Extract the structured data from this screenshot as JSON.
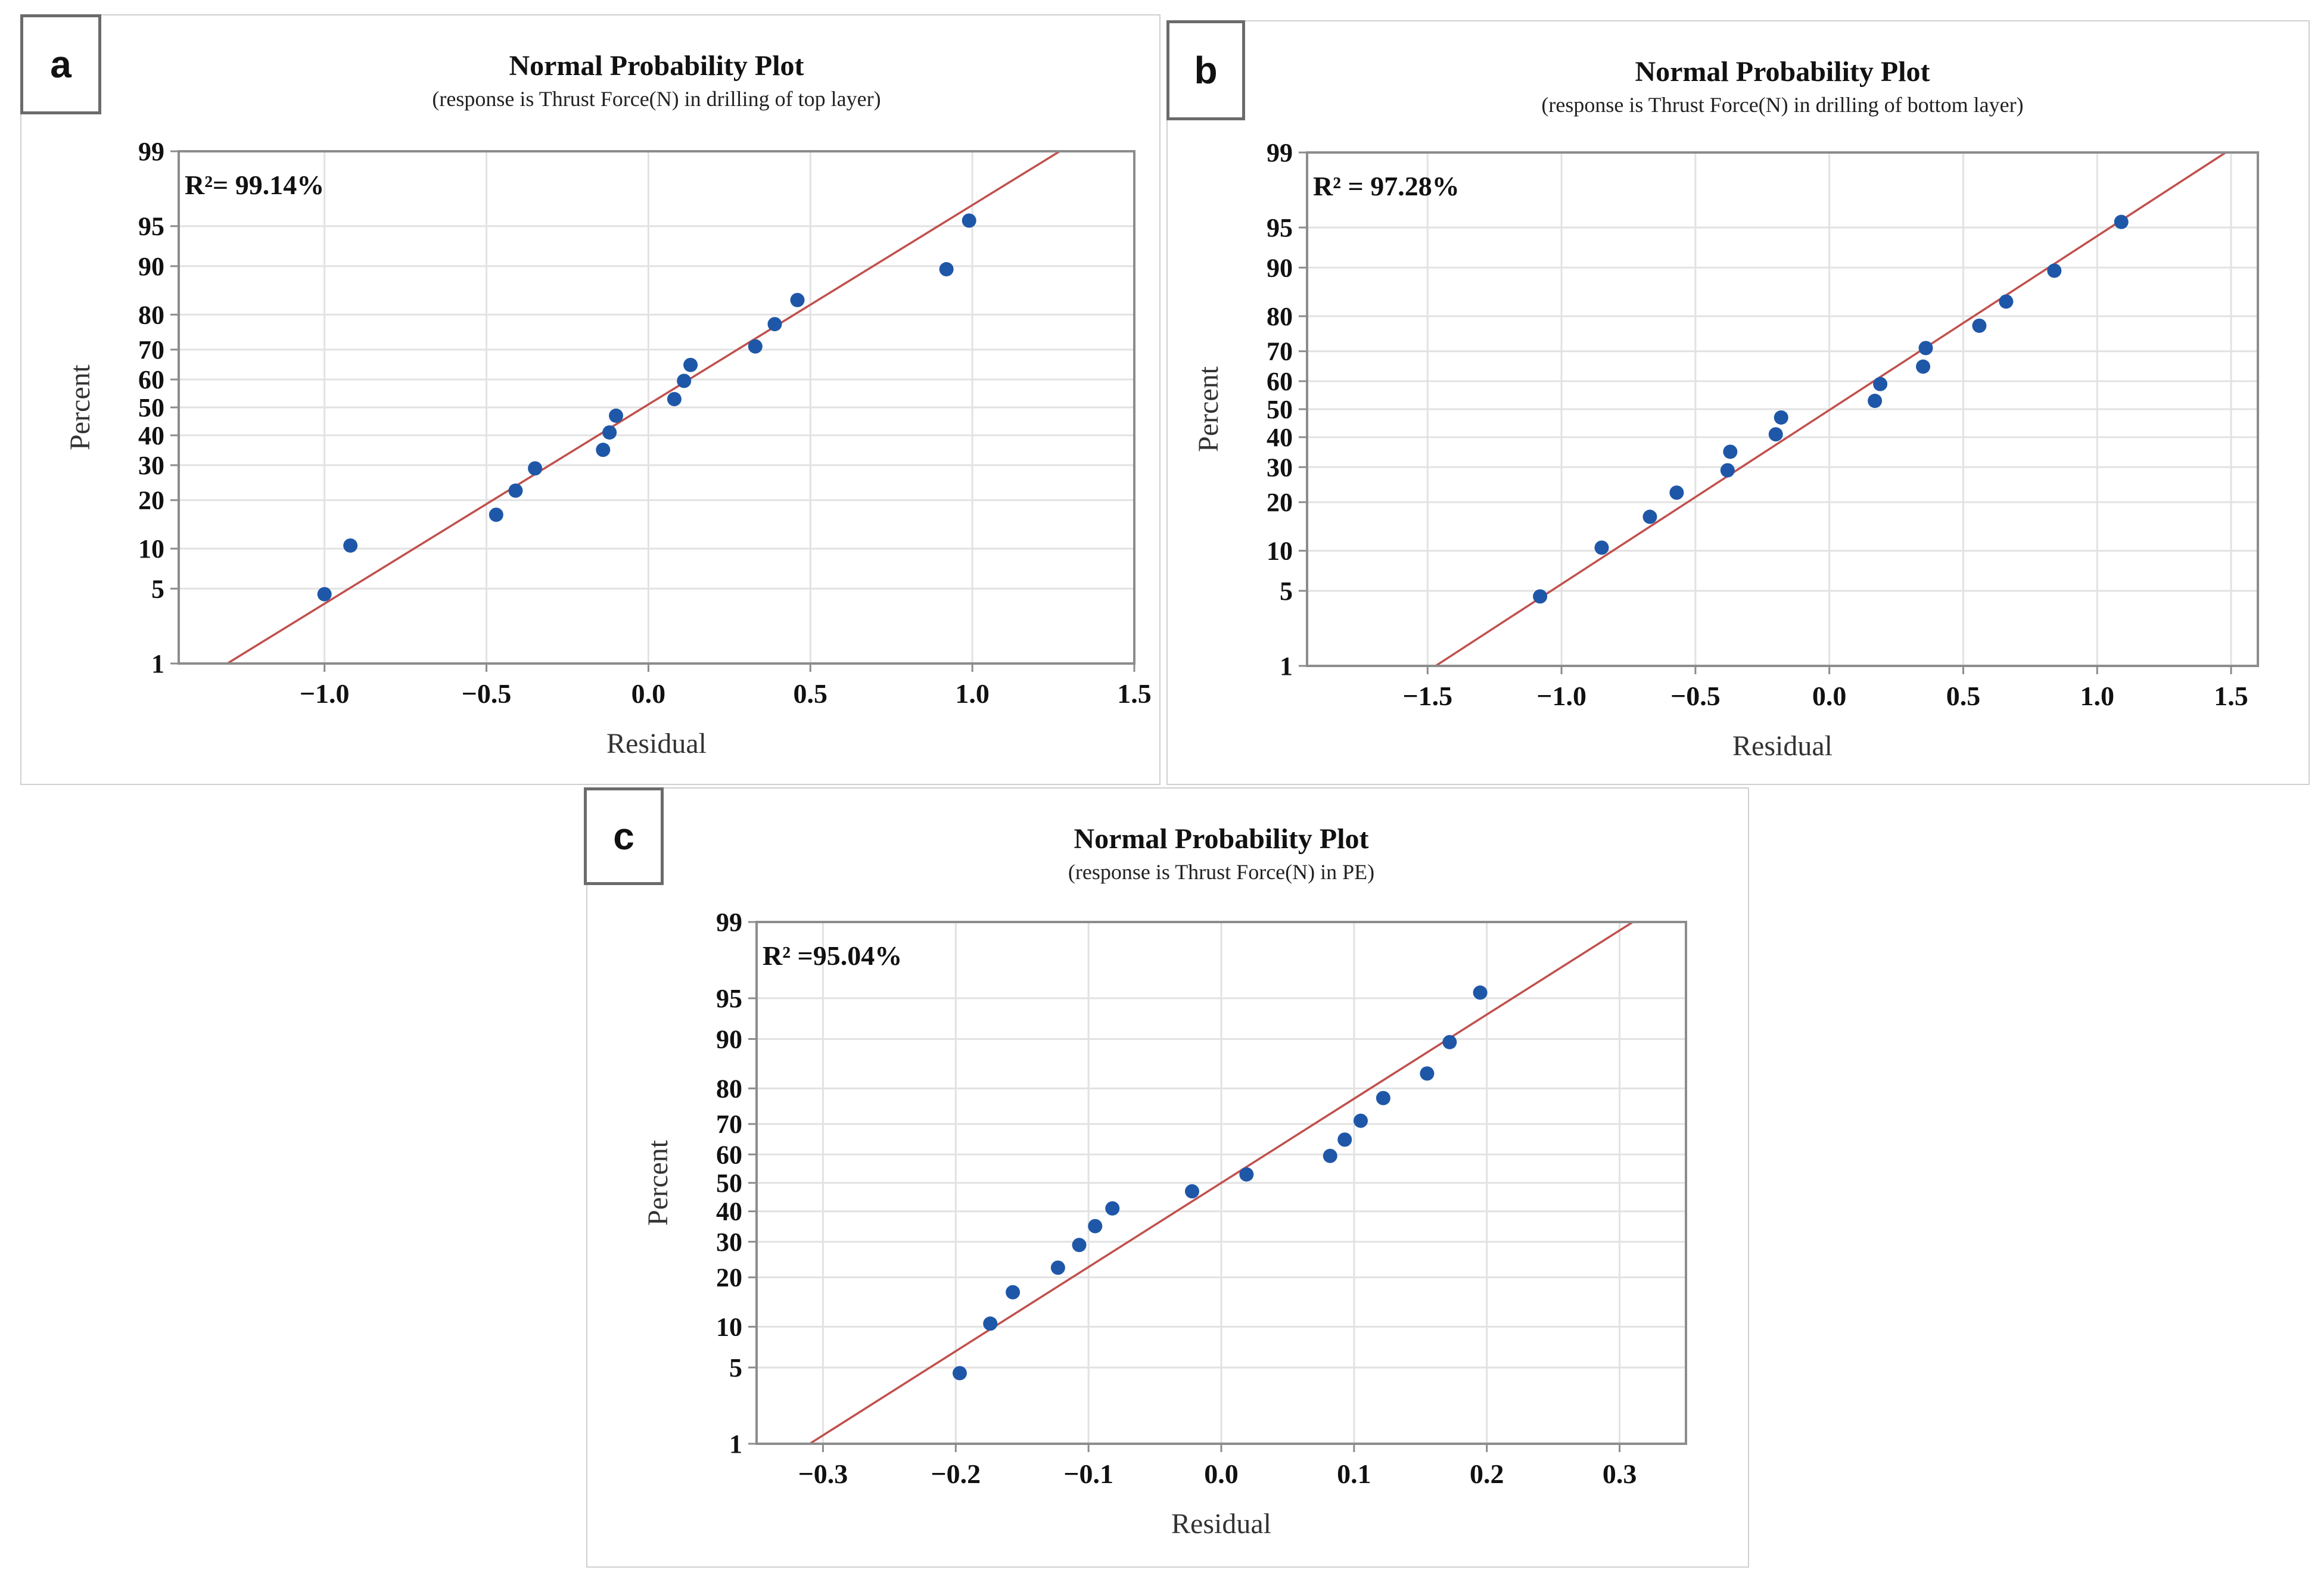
{
  "colors": {
    "point": "#1f57a8",
    "fit_line": "#c0504d",
    "grid": "#e2e2e2",
    "frame": "#8c8c8c"
  },
  "chart_data": [
    {
      "panel_label": "a",
      "type": "scatter",
      "title": "Normal Probability Plot",
      "subtitle": "(response is Thrust Force(N) in drilling of top layer)",
      "xlabel": "Residual",
      "ylabel": "Percent",
      "annotation": "R²= 99.14%",
      "xlim": [
        -1.45,
        1.5
      ],
      "xticks": [
        -1.0,
        -0.5,
        0.0,
        0.5,
        1.0,
        1.5
      ],
      "xtick_labels": [
        "−1.0",
        "−0.5",
        "0.0",
        "0.5",
        "1.0",
        "1.5"
      ],
      "yscale": "normal-probability",
      "yticks": [
        1,
        5,
        10,
        20,
        30,
        40,
        50,
        60,
        70,
        80,
        90,
        95,
        99
      ],
      "fit_line": {
        "x1": -1.3,
        "y1": 1,
        "x2": 1.27,
        "y2": 99
      },
      "points": [
        {
          "x": -1.0,
          "y": 4.5
        },
        {
          "x": -0.92,
          "y": 10.5
        },
        {
          "x": -0.47,
          "y": 16.5
        },
        {
          "x": -0.41,
          "y": 22.5
        },
        {
          "x": -0.35,
          "y": 29
        },
        {
          "x": -0.14,
          "y": 35
        },
        {
          "x": -0.12,
          "y": 41
        },
        {
          "x": -0.1,
          "y": 47
        },
        {
          "x": 0.08,
          "y": 53
        },
        {
          "x": 0.11,
          "y": 59.5
        },
        {
          "x": 0.13,
          "y": 65
        },
        {
          "x": 0.33,
          "y": 71
        },
        {
          "x": 0.39,
          "y": 77.5
        },
        {
          "x": 0.46,
          "y": 83.5
        },
        {
          "x": 0.92,
          "y": 89.5
        },
        {
          "x": 0.99,
          "y": 95.5
        }
      ]
    },
    {
      "panel_label": "b",
      "type": "scatter",
      "title": "Normal Probability Plot",
      "subtitle": "(response is Thrust Force(N) in drilling of bottom layer)",
      "xlabel": "Residual",
      "ylabel": "Percent",
      "annotation": "R² = 97.28%",
      "xlim": [
        -1.95,
        1.6
      ],
      "xticks": [
        -1.5,
        -1.0,
        -0.5,
        0.0,
        0.5,
        1.0,
        1.5
      ],
      "xtick_labels": [
        "−1.5",
        "−1.0",
        "−0.5",
        "0.0",
        "0.5",
        "1.0",
        "1.5"
      ],
      "yscale": "normal-probability",
      "yticks": [
        1,
        5,
        10,
        20,
        30,
        40,
        50,
        60,
        70,
        80,
        90,
        95,
        99
      ],
      "fit_line": {
        "x1": -1.47,
        "y1": 1,
        "x2": 1.48,
        "y2": 99
      },
      "points": [
        {
          "x": -1.08,
          "y": 4.5
        },
        {
          "x": -0.85,
          "y": 10.5
        },
        {
          "x": -0.67,
          "y": 16.5
        },
        {
          "x": -0.57,
          "y": 22.5
        },
        {
          "x": -0.38,
          "y": 29
        },
        {
          "x": -0.37,
          "y": 35
        },
        {
          "x": -0.2,
          "y": 41
        },
        {
          "x": -0.18,
          "y": 47
        },
        {
          "x": 0.17,
          "y": 53
        },
        {
          "x": 0.19,
          "y": 59
        },
        {
          "x": 0.35,
          "y": 65
        },
        {
          "x": 0.36,
          "y": 71
        },
        {
          "x": 0.56,
          "y": 77.5
        },
        {
          "x": 0.66,
          "y": 83.5
        },
        {
          "x": 0.84,
          "y": 89.5
        },
        {
          "x": 1.09,
          "y": 95.5
        }
      ]
    },
    {
      "panel_label": "c",
      "type": "scatter",
      "title": "Normal Probability Plot",
      "subtitle": "(response is Thrust Force(N) in PE)",
      "xlabel": "Residual",
      "ylabel": "Percent",
      "annotation": "R² =95.04%",
      "xlim": [
        -0.35,
        0.35
      ],
      "xticks": [
        -0.3,
        -0.2,
        -0.1,
        0.0,
        0.1,
        0.2,
        0.3
      ],
      "xtick_labels": [
        "−0.3",
        "−0.2",
        "−0.1",
        "0.0",
        "0.1",
        "0.2",
        "0.3"
      ],
      "yscale": "normal-probability",
      "yticks": [
        1,
        5,
        10,
        20,
        30,
        40,
        50,
        60,
        70,
        80,
        90,
        95,
        99
      ],
      "fit_line": {
        "x1": -0.31,
        "y1": 1,
        "x2": 0.31,
        "y2": 99
      },
      "points": [
        {
          "x": -0.197,
          "y": 4.5
        },
        {
          "x": -0.174,
          "y": 10.5
        },
        {
          "x": -0.157,
          "y": 16.5
        },
        {
          "x": -0.123,
          "y": 22.5
        },
        {
          "x": -0.107,
          "y": 29
        },
        {
          "x": -0.095,
          "y": 35
        },
        {
          "x": -0.082,
          "y": 41
        },
        {
          "x": -0.022,
          "y": 47
        },
        {
          "x": 0.019,
          "y": 53
        },
        {
          "x": 0.082,
          "y": 59.5
        },
        {
          "x": 0.093,
          "y": 65
        },
        {
          "x": 0.105,
          "y": 71
        },
        {
          "x": 0.122,
          "y": 77.5
        },
        {
          "x": 0.155,
          "y": 83.5
        },
        {
          "x": 0.172,
          "y": 89.5
        },
        {
          "x": 0.195,
          "y": 95.5
        }
      ]
    }
  ]
}
